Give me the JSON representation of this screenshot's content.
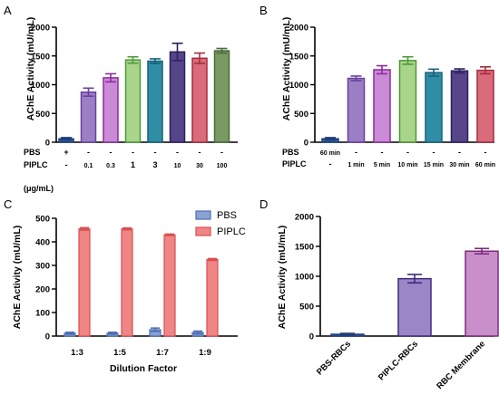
{
  "chart_data": [
    {
      "panel": "A",
      "type": "bar",
      "ylabel": "AChE Activity (mU/mL)",
      "ylim": [
        0,
        2000
      ],
      "yticks": [
        0,
        500,
        1000,
        1500,
        2000
      ],
      "values": [
        60,
        870,
        1120,
        1430,
        1410,
        1570,
        1460,
        1590
      ],
      "errors": [
        20,
        70,
        70,
        55,
        40,
        150,
        90,
        40
      ],
      "colors": [
        "#2d5d9e",
        "#9b7fc4",
        "#c98ad6",
        "#a8d58a",
        "#2f8ea6",
        "#57458a",
        "#d96b7a",
        "#799a63"
      ],
      "edge_colors": [
        "#1e3f7a",
        "#6a3fa0",
        "#8e2c9e",
        "#4d9a37",
        "#16607a",
        "#2e1f5e",
        "#a42c3f",
        "#4b6b3a"
      ],
      "rows": [
        {
          "label": "PBS",
          "marks": [
            "+",
            "-",
            "-",
            "-",
            "-",
            "-",
            "-",
            "-"
          ]
        },
        {
          "label": "PIPLC",
          "marks": [
            "-",
            "0.1",
            "0.3",
            "1",
            "3",
            "10",
            "30",
            "100"
          ]
        }
      ],
      "row_extra": "(μg/mL)"
    },
    {
      "panel": "B",
      "type": "bar",
      "ylabel": "AChE Activity (mU/mL)",
      "ylim": [
        0,
        2000
      ],
      "yticks": [
        0,
        500,
        1000,
        1500,
        2000
      ],
      "values": [
        60,
        1110,
        1260,
        1420,
        1210,
        1240,
        1250
      ],
      "errors": [
        20,
        40,
        70,
        65,
        60,
        35,
        60
      ],
      "colors": [
        "#2d5d9e",
        "#9b7fc4",
        "#c98ad6",
        "#a8d58a",
        "#2f8ea6",
        "#57458a",
        "#d96b7a"
      ],
      "edge_colors": [
        "#1e3f7a",
        "#6a3fa0",
        "#8e2c9e",
        "#4d9a37",
        "#16607a",
        "#2e1f5e",
        "#a42c3f"
      ],
      "rows": [
        {
          "label": "PBS",
          "marks": [
            "60 min",
            "-",
            "-",
            "-",
            "-",
            "-",
            "-"
          ]
        },
        {
          "label": "PIPLC",
          "marks": [
            "-",
            "1 min",
            "5 min",
            "10 min",
            "15 min",
            "30 min",
            "60 min"
          ]
        }
      ]
    },
    {
      "panel": "C",
      "type": "bar",
      "xlabel": "Dilution Factor",
      "ylabel": "AChE Activity (mU/mL)",
      "ylim": [
        0,
        500
      ],
      "yticks": [
        0,
        100,
        200,
        300,
        400,
        500
      ],
      "categories": [
        "1:3",
        "1:5",
        "1:7",
        "1:9"
      ],
      "legend": "top-right",
      "series": [
        {
          "name": "PBS",
          "values": [
            12,
            12,
            27,
            15
          ],
          "errors": [
            4,
            4,
            7,
            6
          ],
          "color": "#8aa3d4",
          "edge": "#4d6fb3"
        },
        {
          "name": "PIPLC",
          "values": [
            455,
            455,
            430,
            325
          ],
          "errors": [
            5,
            4,
            3,
            4
          ],
          "color": "#ef8585",
          "edge": "#d94f4f"
        }
      ]
    },
    {
      "panel": "D",
      "type": "bar",
      "ylabel": "AChE Activity (mU/mL)",
      "ylim": [
        0,
        2000
      ],
      "yticks": [
        0,
        500,
        1000,
        1500,
        2000
      ],
      "categories": [
        "PBS-RBCs",
        "PIPLC-RBCs",
        "RBC Membrane"
      ],
      "values": [
        30,
        960,
        1420
      ],
      "errors": [
        15,
        70,
        45
      ],
      "colors": [
        "#2d5d9e",
        "#9b87c8",
        "#c98fcb"
      ],
      "edge_colors": [
        "#1e3f7a",
        "#3d2b7a",
        "#7a2c7a"
      ]
    }
  ]
}
